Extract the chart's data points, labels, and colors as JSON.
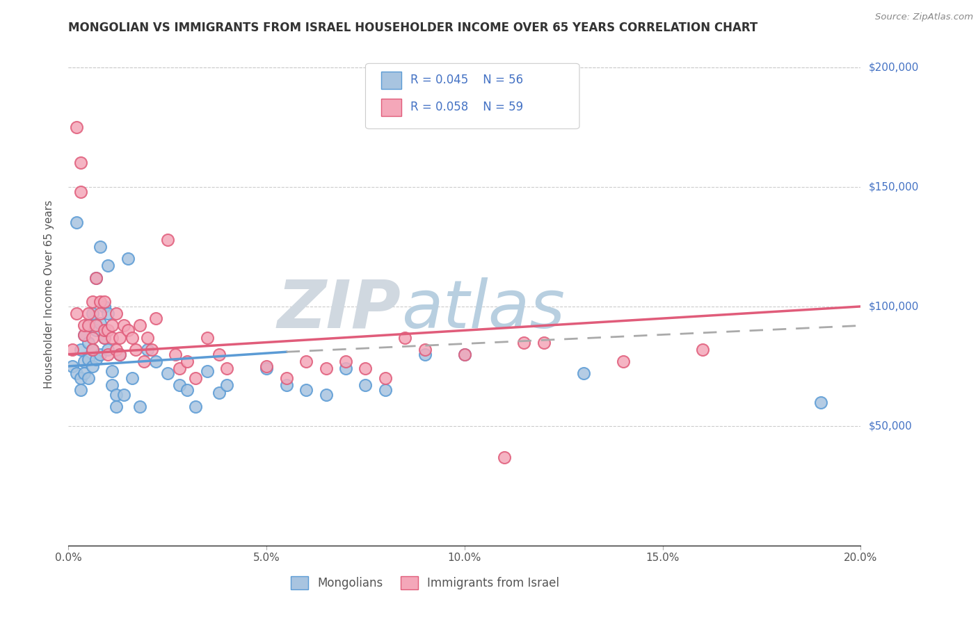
{
  "title": "MONGOLIAN VS IMMIGRANTS FROM ISRAEL HOUSEHOLDER INCOME OVER 65 YEARS CORRELATION CHART",
  "source": "Source: ZipAtlas.com",
  "ylabel": "Householder Income Over 65 years",
  "xlabel_ticks": [
    "0.0%",
    "5.0%",
    "10.0%",
    "15.0%",
    "20.0%"
  ],
  "xlabel_vals": [
    0.0,
    0.05,
    0.1,
    0.15,
    0.2
  ],
  "ytick_labels": [
    "$50,000",
    "$100,000",
    "$150,000",
    "$200,000"
  ],
  "ytick_vals": [
    50000,
    100000,
    150000,
    200000
  ],
  "mongolian_R": 0.045,
  "mongolian_N": 56,
  "israel_R": 0.058,
  "israel_N": 59,
  "mongolian_color": "#a8c4e0",
  "mongolian_edge": "#5b9bd5",
  "israel_color": "#f4a7b9",
  "israel_edge": "#e05c7a",
  "mongolian_line_color": "#5b9bd5",
  "israel_line_color": "#e05c7a",
  "dashed_line_color": "#aaaaaa",
  "background_color": "#ffffff",
  "grid_color": "#cccccc",
  "watermark_color": "#c8d8e8",
  "title_color": "#333333",
  "right_label_color": "#4472c4",
  "legend_R_color": "#4472c4",
  "xlim": [
    0.0,
    0.2
  ],
  "ylim": [
    0,
    210000
  ],
  "mongolian_x": [
    0.001,
    0.002,
    0.002,
    0.003,
    0.003,
    0.003,
    0.004,
    0.004,
    0.004,
    0.005,
    0.005,
    0.005,
    0.005,
    0.006,
    0.006,
    0.006,
    0.007,
    0.007,
    0.007,
    0.008,
    0.008,
    0.008,
    0.009,
    0.009,
    0.01,
    0.01,
    0.01,
    0.011,
    0.011,
    0.012,
    0.012,
    0.013,
    0.014,
    0.015,
    0.016,
    0.018,
    0.02,
    0.022,
    0.025,
    0.028,
    0.03,
    0.032,
    0.035,
    0.038,
    0.04,
    0.05,
    0.055,
    0.06,
    0.065,
    0.07,
    0.075,
    0.08,
    0.09,
    0.1,
    0.13,
    0.19
  ],
  "mongolian_y": [
    75000,
    135000,
    72000,
    82000,
    70000,
    65000,
    88000,
    77000,
    72000,
    92000,
    85000,
    78000,
    70000,
    97000,
    82000,
    75000,
    112000,
    90000,
    78000,
    125000,
    93000,
    80000,
    100000,
    87000,
    117000,
    97000,
    82000,
    73000,
    67000,
    63000,
    58000,
    80000,
    63000,
    120000,
    70000,
    58000,
    82000,
    77000,
    72000,
    67000,
    65000,
    58000,
    73000,
    64000,
    67000,
    74000,
    67000,
    65000,
    63000,
    74000,
    67000,
    65000,
    80000,
    80000,
    72000,
    60000
  ],
  "israel_x": [
    0.001,
    0.002,
    0.002,
    0.003,
    0.003,
    0.004,
    0.004,
    0.005,
    0.005,
    0.006,
    0.006,
    0.006,
    0.007,
    0.007,
    0.008,
    0.008,
    0.009,
    0.009,
    0.009,
    0.01,
    0.01,
    0.011,
    0.011,
    0.012,
    0.012,
    0.013,
    0.013,
    0.014,
    0.015,
    0.016,
    0.017,
    0.018,
    0.019,
    0.02,
    0.021,
    0.022,
    0.025,
    0.027,
    0.028,
    0.03,
    0.032,
    0.035,
    0.038,
    0.04,
    0.05,
    0.055,
    0.06,
    0.065,
    0.07,
    0.075,
    0.08,
    0.085,
    0.09,
    0.1,
    0.11,
    0.115,
    0.12,
    0.14,
    0.16
  ],
  "israel_y": [
    82000,
    97000,
    175000,
    160000,
    148000,
    88000,
    92000,
    92000,
    97000,
    102000,
    87000,
    82000,
    112000,
    92000,
    97000,
    102000,
    87000,
    102000,
    90000,
    90000,
    80000,
    92000,
    87000,
    82000,
    97000,
    87000,
    80000,
    92000,
    90000,
    87000,
    82000,
    92000,
    77000,
    87000,
    82000,
    95000,
    128000,
    80000,
    74000,
    77000,
    70000,
    87000,
    80000,
    74000,
    75000,
    70000,
    77000,
    74000,
    77000,
    74000,
    70000,
    87000,
    82000,
    80000,
    37000,
    85000,
    85000,
    77000,
    82000
  ]
}
